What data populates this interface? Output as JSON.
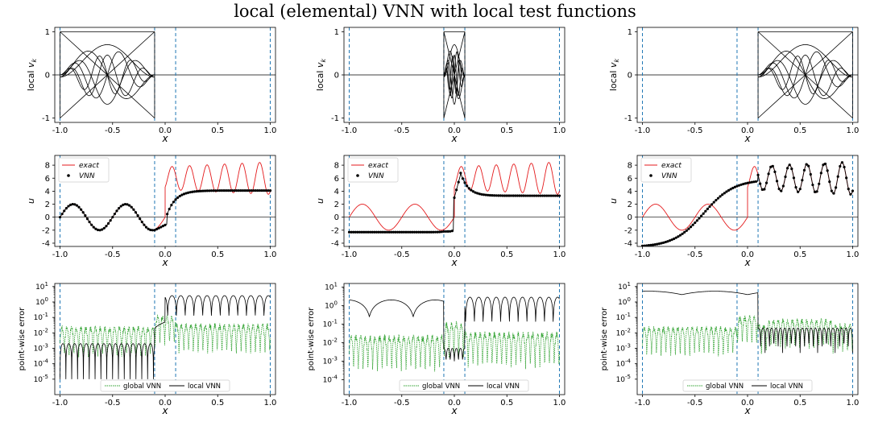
{
  "title": "local (elemental) VNN with local test functions",
  "colors": {
    "exact": "#e41a1c",
    "vnn": "#000000",
    "global_vnn": "#2ca02c",
    "local_vnn": "#000000",
    "element_boundary": "#1f77b4",
    "zero_line": "#000000"
  },
  "chart_data": [
    {
      "type": "line",
      "panel": "row1-col1",
      "xlabel": "x",
      "ylabel": "local v_k",
      "xlim": [
        -1.05,
        1.05
      ],
      "ylim": [
        -1.1,
        1.1
      ],
      "xticks": [
        "-1.0",
        "-0.5",
        "0.0",
        "0.5",
        "1.0"
      ],
      "yticks": [
        "-1",
        "0",
        "1"
      ],
      "element_boundaries": [
        -1.0,
        -0.1,
        0.1,
        1.0
      ],
      "element": [
        -1.0,
        -0.1
      ],
      "series": [
        {
          "kind": "test-functions",
          "description_count": 8
        }
      ]
    },
    {
      "type": "line",
      "panel": "row1-col2",
      "xlabel": "x",
      "ylabel": "local v_k",
      "xlim": [
        -1.05,
        1.05
      ],
      "ylim": [
        -1.1,
        1.1
      ],
      "xticks": [
        "-1.0",
        "-0.5",
        "0.0",
        "0.5",
        "1.0"
      ],
      "yticks": [
        "-1",
        "0",
        "1"
      ],
      "element_boundaries": [
        -1.0,
        -0.1,
        0.1,
        1.0
      ],
      "element": [
        -0.1,
        0.1
      ]
    },
    {
      "type": "line",
      "panel": "row1-col3",
      "xlabel": "x",
      "ylabel": "local v_k",
      "xlim": [
        -1.05,
        1.05
      ],
      "ylim": [
        -1.1,
        1.1
      ],
      "xticks": [
        "-1.0",
        "-0.5",
        "0.0",
        "0.5",
        "1.0"
      ],
      "yticks": [
        "-1",
        "0",
        "1"
      ],
      "element_boundaries": [
        -1.0,
        -0.1,
        0.1,
        1.0
      ],
      "element": [
        0.1,
        1.0
      ]
    },
    {
      "type": "line",
      "panel": "row2-col1",
      "xlabel": "x",
      "ylabel": "u",
      "xlim": [
        -1.05,
        1.05
      ],
      "ylim": [
        -4.5,
        9.5
      ],
      "xticks": [
        "-1.0",
        "-0.5",
        "0.0",
        "0.5",
        "1.0"
      ],
      "yticks": [
        "-4",
        "-2",
        "0",
        "2",
        "4",
        "6",
        "8"
      ],
      "element_boundaries": [
        -1.0,
        -0.1,
        0.1,
        1.0
      ],
      "legend": {
        "position": "upper-left",
        "entries": [
          "exact",
          "VNN"
        ]
      },
      "exact": {
        "left_amplitude": 2,
        "left_periods": 2,
        "jump_at": 0.0,
        "right_base": 6,
        "right_amplitude": 2.5,
        "right_cycles": 6
      },
      "vnn": {
        "fit_region": "left",
        "right_plateau": 4.1,
        "near_zero": -2.0
      }
    },
    {
      "type": "line",
      "panel": "row2-col2",
      "xlabel": "x",
      "ylabel": "u",
      "xlim": [
        -1.05,
        1.05
      ],
      "ylim": [
        -4.5,
        9.5
      ],
      "xticks": [
        "-1.0",
        "-0.5",
        "0.0",
        "0.5",
        "1.0"
      ],
      "yticks": [
        "-4",
        "-2",
        "0",
        "2",
        "4",
        "6",
        "8"
      ],
      "element_boundaries": [
        -1.0,
        -0.1,
        0.1,
        1.0
      ],
      "legend": {
        "position": "upper-left",
        "entries": [
          "exact",
          "VNN"
        ]
      },
      "vnn": {
        "fit_region": "middle",
        "left_plateau": -2.3,
        "peak": 7.0,
        "right_plateau": 3.3
      }
    },
    {
      "type": "line",
      "panel": "row2-col3",
      "xlabel": "x",
      "ylabel": "u",
      "xlim": [
        -1.05,
        1.05
      ],
      "ylim": [
        -4.5,
        9.5
      ],
      "xticks": [
        "-1.0",
        "-0.5",
        "0.0",
        "0.5",
        "1.0"
      ],
      "yticks": [
        "-4",
        "-2",
        "0",
        "2",
        "4",
        "6",
        "8"
      ],
      "element_boundaries": [
        -1.0,
        -0.1,
        0.1,
        1.0
      ],
      "legend": {
        "position": "upper-left",
        "entries": [
          "exact",
          "VNN"
        ]
      },
      "vnn": {
        "fit_region": "right",
        "left_start": -4.5,
        "mid_value": 5.8
      }
    },
    {
      "type": "line",
      "panel": "row3-col1",
      "yscale": "log",
      "xlabel": "x",
      "ylabel": "point-wise error",
      "xlim": [
        -1.05,
        1.05
      ],
      "ylim_exponent": [
        -6,
        1.2
      ],
      "xticks": [
        "-1.0",
        "-0.5",
        "0.0",
        "0.5",
        "1.0"
      ],
      "yticks": [
        "10^1",
        "10^0",
        "10^-1",
        "10^-2",
        "10^-3",
        "10^-4",
        "10^-5"
      ],
      "element_boundaries": [
        -1.0,
        -0.1,
        0.1,
        1.0
      ],
      "legend": {
        "position": "lower-center",
        "entries": [
          "global VNN",
          "local VNN"
        ]
      }
    },
    {
      "type": "line",
      "panel": "row3-col2",
      "yscale": "log",
      "xlabel": "x",
      "ylabel": "point-wise error",
      "xlim": [
        -1.05,
        1.05
      ],
      "ylim_exponent": [
        -4.8,
        1.2
      ],
      "xticks": [
        "-1.0",
        "-0.5",
        "0.0",
        "0.5",
        "1.0"
      ],
      "yticks": [
        "10^1",
        "10^0",
        "10^-1",
        "10^-2",
        "10^-3",
        "10^-4"
      ],
      "element_boundaries": [
        -1.0,
        -0.1,
        0.1,
        1.0
      ],
      "legend": {
        "position": "lower-right",
        "entries": [
          "global VNN",
          "local VNN"
        ]
      }
    },
    {
      "type": "line",
      "panel": "row3-col3",
      "yscale": "log",
      "xlabel": "x",
      "ylabel": "point-wise error",
      "xlim": [
        -1.05,
        1.05
      ],
      "ylim_exponent": [
        -6,
        1.2
      ],
      "xticks": [
        "-1.0",
        "-0.5",
        "0.0",
        "0.5",
        "1.0"
      ],
      "yticks": [
        "10^1",
        "10^0",
        "10^-1",
        "10^-2",
        "10^-3",
        "10^-4",
        "10^-5"
      ],
      "element_boundaries": [
        -1.0,
        -0.1,
        0.1,
        1.0
      ],
      "legend": {
        "position": "lower-center",
        "entries": [
          "global VNN",
          "local VNN"
        ]
      }
    }
  ]
}
